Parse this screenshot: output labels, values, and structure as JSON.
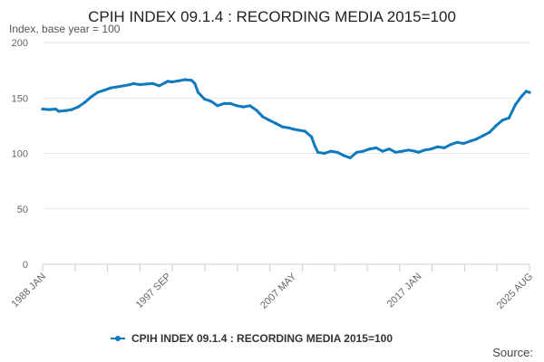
{
  "colors": {
    "series": "#0f7bbd",
    "grid": "#e6e6e6",
    "axis": "#cccccc",
    "text": "#333333"
  },
  "source_label": "Source:",
  "chart_data": {
    "type": "line",
    "title": "CPIH INDEX 09.1.4 : RECORDING MEDIA 2015=100",
    "subtitle": "Index, base year = 100",
    "xlabel": "",
    "ylabel": "",
    "ylim": [
      0,
      200
    ],
    "yticks": [
      0,
      50,
      100,
      150,
      200
    ],
    "xlim": [
      "1988-01",
      "2025-08"
    ],
    "xtick_labels": [
      {
        "date": "1988-01",
        "label": "1988 JAN"
      },
      {
        "date": "1997-09",
        "label": "1997 SEP"
      },
      {
        "date": "2007-05",
        "label": "2007 MAY"
      },
      {
        "date": "2017-01",
        "label": "2017 JAN"
      },
      {
        "date": "2025-08",
        "label": "2025 AUG"
      }
    ],
    "grid": "horizontal",
    "legend": "bottom-center",
    "series": [
      {
        "name": "CPIH INDEX 09.1.4 : RECORDING MEDIA 2015=100",
        "points": [
          [
            "1988-01",
            140
          ],
          [
            "1988-07",
            139.5
          ],
          [
            "1989-01",
            140
          ],
          [
            "1989-04",
            138
          ],
          [
            "1989-10",
            138.5
          ],
          [
            "1990-04",
            139.5
          ],
          [
            "1990-10",
            142
          ],
          [
            "1991-04",
            146
          ],
          [
            "1991-10",
            151
          ],
          [
            "1992-04",
            155
          ],
          [
            "1992-10",
            157
          ],
          [
            "1993-04",
            159
          ],
          [
            "1993-10",
            160
          ],
          [
            "1994-04",
            161
          ],
          [
            "1994-10",
            162
          ],
          [
            "1995-01",
            163
          ],
          [
            "1995-07",
            162
          ],
          [
            "1996-01",
            162.5
          ],
          [
            "1996-07",
            163
          ],
          [
            "1997-01",
            161
          ],
          [
            "1997-07",
            164
          ],
          [
            "1997-09",
            165
          ],
          [
            "1998-01",
            164.5
          ],
          [
            "1998-07",
            165.5
          ],
          [
            "1999-01",
            166.5
          ],
          [
            "1999-07",
            166
          ],
          [
            "1999-10",
            163
          ],
          [
            "2000-01",
            155
          ],
          [
            "2000-07",
            149
          ],
          [
            "2001-01",
            147
          ],
          [
            "2001-07",
            143
          ],
          [
            "2002-01",
            145
          ],
          [
            "2002-07",
            145
          ],
          [
            "2003-01",
            143
          ],
          [
            "2003-07",
            142
          ],
          [
            "2004-01",
            143
          ],
          [
            "2004-07",
            139
          ],
          [
            "2005-01",
            133
          ],
          [
            "2005-07",
            130
          ],
          [
            "2006-01",
            127
          ],
          [
            "2006-07",
            124
          ],
          [
            "2007-01",
            123
          ],
          [
            "2007-05",
            122
          ],
          [
            "2007-10",
            121
          ],
          [
            "2008-04",
            120
          ],
          [
            "2008-10",
            115
          ],
          [
            "2009-01",
            107
          ],
          [
            "2009-04",
            101
          ],
          [
            "2009-10",
            100
          ],
          [
            "2010-04",
            102
          ],
          [
            "2010-10",
            101
          ],
          [
            "2011-04",
            98
          ],
          [
            "2011-10",
            96
          ],
          [
            "2012-04",
            101
          ],
          [
            "2012-10",
            102
          ],
          [
            "2013-04",
            104
          ],
          [
            "2013-10",
            105
          ],
          [
            "2014-04",
            102
          ],
          [
            "2014-10",
            104
          ],
          [
            "2015-04",
            101
          ],
          [
            "2015-10",
            102
          ],
          [
            "2016-04",
            103
          ],
          [
            "2016-10",
            102
          ],
          [
            "2017-01",
            101
          ],
          [
            "2017-07",
            103
          ],
          [
            "2018-01",
            104
          ],
          [
            "2018-07",
            106
          ],
          [
            "2019-01",
            105
          ],
          [
            "2019-07",
            108
          ],
          [
            "2020-01",
            110
          ],
          [
            "2020-07",
            109
          ],
          [
            "2021-01",
            111
          ],
          [
            "2021-07",
            113
          ],
          [
            "2022-01",
            116
          ],
          [
            "2022-07",
            119
          ],
          [
            "2023-01",
            125
          ],
          [
            "2023-07",
            130
          ],
          [
            "2024-01",
            132
          ],
          [
            "2024-07",
            144
          ],
          [
            "2025-01",
            152
          ],
          [
            "2025-05",
            156
          ],
          [
            "2025-08",
            155
          ]
        ]
      }
    ]
  }
}
